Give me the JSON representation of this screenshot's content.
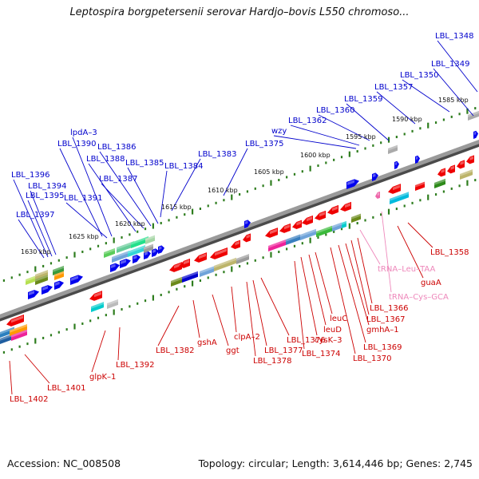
{
  "title": "Leptospira borgpetersenii serovar Hardjo–bovis L550 chromoso...",
  "footer": {
    "accession": "Accession: NC_008508",
    "topology": "Topology: circular; Length: 3,614,446 bp; Genes: 2,745"
  },
  "colors": {
    "backbone": "#8a8a8a",
    "tick": "#2e7d1e",
    "label_top": "#0000cc",
    "label_bottom": "#cc0000",
    "label_rna": "#ee88bb",
    "gene_blue": "#0000ee",
    "gene_red": "#ee0000",
    "gene_pink": "#ee66aa"
  },
  "kbp_labels": [
    "1585 kbp",
    "1590 kbp",
    "1595 kbp",
    "1600 kbp",
    "1605 kbp",
    "1610 kbp",
    "1615 kbp",
    "1620 kbp",
    "1625 kbp",
    "1630 kbp"
  ],
  "top_labels": [
    "LBL_1348",
    "LBL_1349",
    "LBL_1350",
    "LBL_1357",
    "LBL_1359",
    "LBL_1360",
    "LBL_1362",
    "wzy",
    "LBL_1375",
    "LBL_1383",
    "LBL_1384",
    "LBL_1385",
    "LBL_1386",
    "LBL_1387",
    "LBL_1388",
    "lpdA–3",
    "LBL_1390",
    "LBL_1391",
    "LBL_1394",
    "LBL_1395",
    "LBL_1396",
    "LBL_1397"
  ],
  "bottom_labels": [
    "LBL_1358",
    "guaA",
    "tRNA–Leu–TAA",
    "tRNA–Cys–GCA",
    "LBL_1366",
    "LBL_1367",
    "gmhA–1",
    "LBL_1369",
    "LBL_1370",
    "leuC",
    "leuD",
    "cysK–3",
    "LBL_1374",
    "LBL_1376",
    "LBL_1377",
    "LBL_1378",
    "clpA–2",
    "ggt",
    "gshA",
    "LBL_1382",
    "LBL_1392",
    "glpK–1",
    "LBL_1401",
    "LBL_1402"
  ]
}
